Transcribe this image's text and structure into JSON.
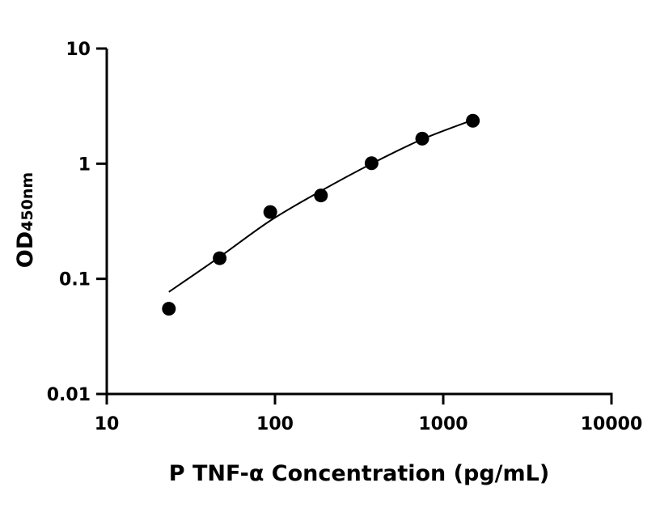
{
  "chart_data": {
    "type": "scatter",
    "title": "",
    "xlabel": "P TNF-α Concentration (pg/mL)",
    "ylabel_main": "OD",
    "ylabel_sub": "450nm",
    "x_scale": "log",
    "y_scale": "log",
    "xlim": [
      10,
      10000
    ],
    "ylim": [
      0.01,
      10
    ],
    "x_ticks": [
      10,
      100,
      1000,
      10000
    ],
    "x_tick_labels": [
      "10",
      "100",
      "1000",
      "10000"
    ],
    "y_ticks": [
      0.01,
      0.1,
      1,
      10
    ],
    "y_tick_labels": [
      "0.01",
      "0.1",
      "1",
      "10"
    ],
    "grid": false,
    "points": {
      "x": [
        23.4,
        46.9,
        93.75,
        187.5,
        375,
        750,
        1500
      ],
      "y": [
        0.055,
        0.151,
        0.38,
        0.53,
        1.01,
        1.65,
        2.36
      ]
    },
    "fit_curve": {
      "x": [
        23.4,
        46.9,
        93.75,
        187.5,
        375,
        750,
        1500
      ],
      "y": [
        0.077,
        0.155,
        0.32,
        0.58,
        1.0,
        1.63,
        2.4
      ]
    },
    "marker_color": "#000000",
    "line_color": "#000000"
  }
}
